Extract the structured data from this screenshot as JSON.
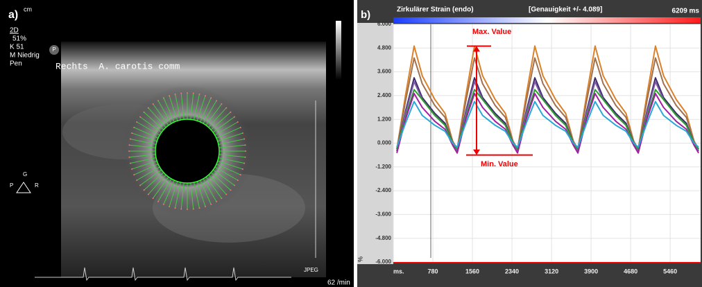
{
  "panel_a": {
    "label": "a)",
    "unit": "cm",
    "mode": "2D",
    "gain": "51%",
    "k": "K 51",
    "preset": "M Niedrig",
    "probe": "Pen",
    "p_badge": "P",
    "site": "Rechts  A. carotis comm",
    "orient_g": "G",
    "orient_p": "P",
    "orient_r": "R",
    "format": "JPEG",
    "rate": "62 /min"
  },
  "chart_data": {
    "type": "line",
    "panel_label": "b)",
    "title": "Zirkulärer Strain (endo)",
    "subtitle": "[Genauigkeit +/- 4.089]",
    "duration": "6209 ms",
    "ylabel": "%",
    "annotations": [
      "Max. Value",
      "Min. Value"
    ],
    "x": [
      70,
      240,
      410,
      570,
      820,
      1020,
      1170,
      1260,
      1430,
      1600,
      1760,
      2010,
      2210,
      2360,
      2450,
      2620,
      2790,
      2950,
      3200,
      3400,
      3550,
      3640,
      3810,
      3980,
      4140,
      4390,
      4590,
      4740,
      4830,
      5000,
      5170,
      5330,
      5580,
      5780,
      5930,
      6020
    ],
    "series": [
      {
        "color": "#d9822b",
        "values": [
          -0.3,
          2.4,
          4.9,
          3.4,
          2.2,
          1.5,
          0.1,
          -0.3,
          2.4,
          4.9,
          3.4,
          2.2,
          1.5,
          0.1,
          -0.3,
          2.4,
          4.9,
          3.4,
          2.2,
          1.5,
          0.1,
          -0.3,
          2.4,
          4.9,
          3.4,
          2.2,
          1.5,
          0.1,
          -0.3,
          2.4,
          4.9,
          3.4,
          2.2,
          1.5,
          0.1,
          -0.3
        ]
      },
      {
        "color": "#a0714f",
        "values": [
          -0.3,
          2.1,
          4.3,
          3.0,
          1.9,
          1.3,
          0.1,
          -0.3,
          2.1,
          4.3,
          3.0,
          1.9,
          1.3,
          0.1,
          -0.3,
          2.1,
          4.3,
          3.0,
          1.9,
          1.3,
          0.1,
          -0.3,
          2.1,
          4.3,
          3.0,
          1.9,
          1.3,
          0.1,
          -0.3,
          2.1,
          4.3,
          3.0,
          1.9,
          1.3,
          0.1,
          -0.3
        ]
      },
      {
        "color": "#3d2a6b",
        "values": [
          -0.4,
          1.6,
          3.3,
          2.3,
          1.5,
          1.0,
          0.0,
          -0.4,
          1.6,
          3.3,
          2.3,
          1.5,
          1.0,
          0.0,
          -0.4,
          1.6,
          3.3,
          2.3,
          1.5,
          1.0,
          0.0,
          -0.4,
          1.6,
          3.3,
          2.3,
          1.5,
          1.0,
          0.0,
          -0.4,
          1.6,
          3.3,
          2.3,
          1.5,
          1.0,
          0.0,
          -0.4
        ]
      },
      {
        "color": "#7d5aa6",
        "values": [
          -0.4,
          1.5,
          3.1,
          2.2,
          1.4,
          0.9,
          0.0,
          -0.4,
          1.5,
          3.1,
          2.2,
          1.4,
          0.9,
          0.0,
          -0.4,
          1.5,
          3.1,
          2.2,
          1.4,
          0.9,
          0.0,
          -0.4,
          1.5,
          3.1,
          2.2,
          1.4,
          0.9,
          0.0,
          -0.4,
          1.5,
          3.1,
          2.2,
          1.4,
          0.9,
          0.0,
          -0.4
        ]
      },
      {
        "color": "#2e9e2e",
        "values": [
          -0.3,
          1.3,
          2.7,
          2.2,
          1.4,
          0.9,
          0.0,
          -0.3,
          1.3,
          2.7,
          2.2,
          1.4,
          0.9,
          0.0,
          -0.3,
          1.3,
          2.7,
          2.2,
          1.4,
          0.9,
          0.0,
          -0.3,
          1.3,
          2.7,
          2.2,
          1.4,
          0.9,
          0.0,
          -0.3,
          1.3,
          2.7,
          2.2,
          1.4,
          0.9,
          0.0,
          -0.3
        ]
      },
      {
        "color": "#a020a0",
        "values": [
          -0.5,
          1.2,
          2.5,
          1.8,
          1.1,
          0.7,
          -0.1,
          -0.5,
          1.2,
          2.5,
          1.8,
          1.1,
          0.7,
          -0.1,
          -0.5,
          1.2,
          2.5,
          1.8,
          1.1,
          0.7,
          -0.1,
          -0.5,
          1.2,
          2.5,
          1.8,
          1.1,
          0.7,
          -0.1,
          -0.5,
          1.2,
          2.5,
          1.8,
          1.1,
          0.7,
          -0.1,
          -0.5
        ]
      },
      {
        "color": "#29a8d8",
        "values": [
          -0.2,
          1.0,
          2.1,
          1.4,
          0.9,
          0.6,
          0.0,
          -0.2,
          1.0,
          2.1,
          1.4,
          0.9,
          0.6,
          0.0,
          -0.2,
          1.0,
          2.1,
          1.4,
          0.9,
          0.6,
          0.0,
          -0.2,
          1.0,
          2.1,
          1.4,
          0.9,
          0.6,
          0.0,
          -0.2,
          1.0,
          2.1,
          1.4,
          0.9,
          0.6,
          0.0,
          -0.2
        ]
      }
    ],
    "xlim": [
      0,
      6060
    ],
    "ylim": [
      -6,
      6
    ],
    "xticks": [
      {
        "value": 0,
        "label": "ms."
      },
      780,
      1560,
      2340,
      3120,
      3900,
      4680,
      5460
    ],
    "yticks": [
      {
        "value": 6,
        "label": "6.000"
      },
      {
        "value": 4.8,
        "label": "4.800"
      },
      {
        "value": 3.6,
        "label": "3.600"
      },
      {
        "value": 2.4,
        "label": "2.400"
      },
      {
        "value": 1.2,
        "label": "1.200"
      },
      {
        "value": 0,
        "label": "0.000"
      },
      {
        "value": -1.2,
        "label": "-1.200"
      },
      {
        "value": -2.4,
        "label": "-2.400"
      },
      {
        "value": -3.6,
        "label": "-3.600"
      },
      {
        "value": -4.8,
        "label": "-4.800"
      },
      {
        "value": -6,
        "label": "-6.000"
      }
    ],
    "grid": true
  }
}
